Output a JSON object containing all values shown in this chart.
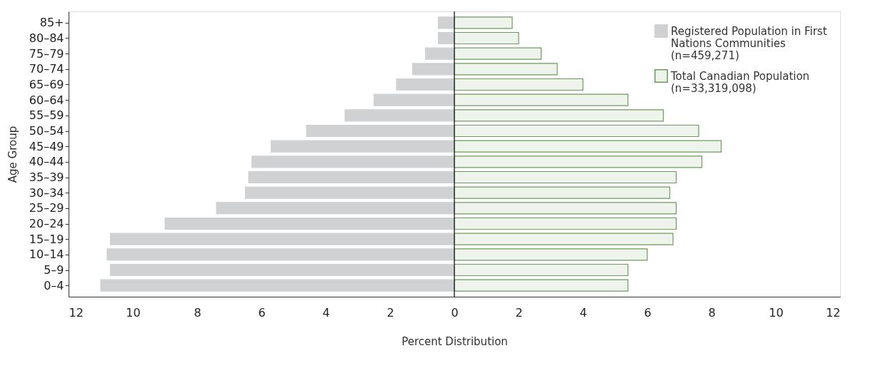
{
  "chart_data": {
    "type": "bar",
    "orientation": "horizontal",
    "xlabel": "Percent Distribution",
    "ylabel": "Age Group",
    "categories": [
      "85+",
      "80–84",
      "75–79",
      "70–74",
      "65–69",
      "60–64",
      "55–59",
      "50–54",
      "45–49",
      "40–44",
      "35–39",
      "30–34",
      "25–29",
      "20–24",
      "15–19",
      "10–14",
      "5–9",
      "0–4"
    ],
    "series": [
      {
        "name": "Registered Population in First Nations Communities (n=459,271)",
        "color": "#d0d1d3",
        "values": [
          -0.5,
          -0.5,
          -0.9,
          -1.3,
          -1.8,
          -2.5,
          -3.4,
          -4.6,
          -5.7,
          -6.3,
          -6.4,
          -6.5,
          -7.4,
          -9.0,
          -10.7,
          -10.8,
          -10.7,
          -11.0
        ]
      },
      {
        "name": "Total Canadian Population (n=33,319,098)",
        "color": "#6e9a5e",
        "values": [
          1.8,
          2.0,
          2.7,
          3.2,
          4.0,
          5.4,
          6.5,
          7.6,
          8.3,
          7.7,
          6.9,
          6.7,
          6.9,
          6.9,
          6.8,
          6.0,
          5.4,
          5.4
        ]
      }
    ],
    "xlim": [
      -12,
      12
    ],
    "xticks": [
      {
        "value": -12,
        "label": "12"
      },
      {
        "value": -10,
        "label": "10"
      },
      {
        "value": -8,
        "label": "8"
      },
      {
        "value": -6,
        "label": "6"
      },
      {
        "value": -4,
        "label": "4"
      },
      {
        "value": -2,
        "label": "2"
      },
      0,
      2,
      4,
      6,
      8,
      10,
      12
    ],
    "ref_lines": [
      {
        "axis": "x",
        "value": 0
      }
    ],
    "stacked": true,
    "grid": false,
    "legend": "top right"
  }
}
